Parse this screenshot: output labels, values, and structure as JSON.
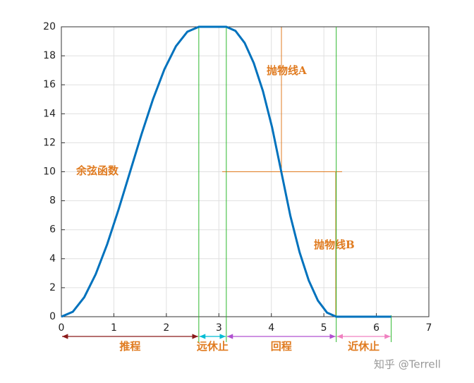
{
  "chart_data": {
    "type": "line",
    "x": [
      0,
      0.218,
      0.436,
      0.654,
      0.873,
      1.091,
      1.309,
      1.527,
      1.745,
      1.963,
      2.182,
      2.4,
      2.618,
      3.142,
      3.316,
      3.491,
      3.665,
      3.84,
      4.014,
      4.189,
      4.363,
      4.538,
      4.712,
      4.887,
      5.061,
      5.236,
      6.283
    ],
    "series": [
      {
        "color": "#0072bd",
        "values": [
          0,
          0.34,
          1.34,
          2.93,
          5,
          7.41,
          10,
          12.59,
          15,
          17.07,
          18.66,
          19.66,
          20,
          20,
          19.72,
          18.89,
          17.5,
          15.56,
          13.06,
          10,
          6.94,
          4.44,
          2.5,
          1.11,
          0.28,
          0,
          0
        ]
      }
    ],
    "xlim": [
      0,
      7
    ],
    "xticks": [
      0,
      1,
      2,
      3,
      4,
      5,
      6,
      7
    ],
    "ylim": [
      0,
      20
    ],
    "yticks": [
      0,
      2,
      4,
      6,
      8,
      10,
      12,
      14,
      16,
      18,
      20
    ],
    "grid": true,
    "annotations": [
      "余弦函数",
      "抛物线A",
      "抛物线B"
    ],
    "segments": [
      {
        "label": "推程",
        "start": 0,
        "end": 2.618,
        "color": "#8b1a1a"
      },
      {
        "label": "远休止",
        "start": 2.618,
        "end": 3.142,
        "color": "#00bcd4"
      },
      {
        "label": "回程",
        "start": 3.142,
        "end": 5.236,
        "color": "#b050d0"
      },
      {
        "label": "近休止",
        "start": 5.236,
        "end": 6.283,
        "color": "#f080c0"
      }
    ],
    "watermark": "知乎 @Terrell"
  }
}
